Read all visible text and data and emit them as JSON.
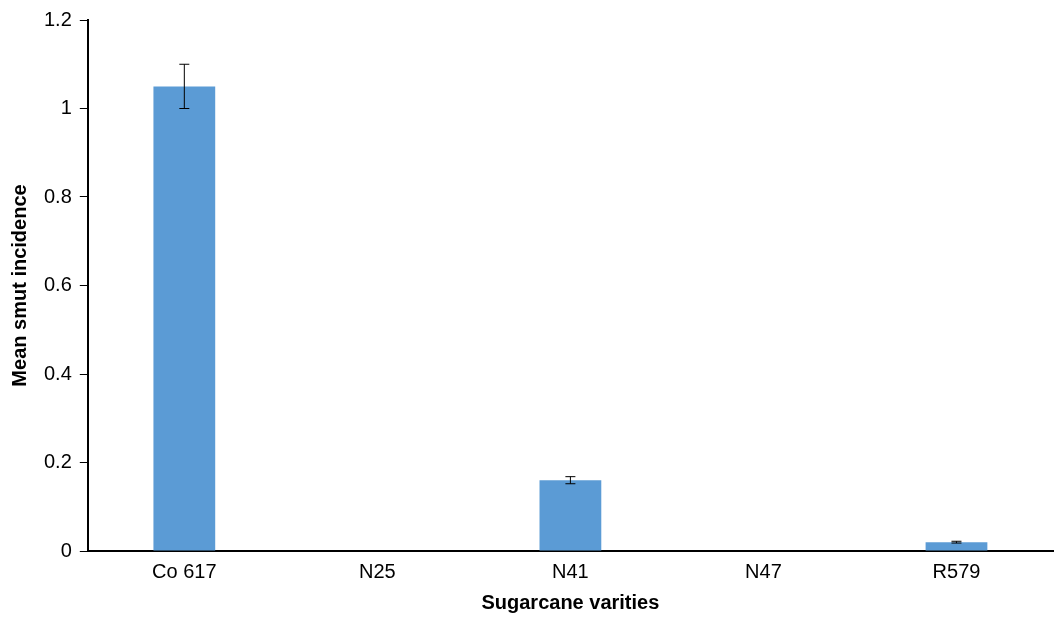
{
  "chart_data": {
    "type": "bar",
    "xlabel": "Sugarcane varities",
    "ylabel": "Mean smut incidence",
    "categories": [
      "Co 617",
      "N25",
      "N41",
      "N47",
      "R579"
    ],
    "values": [
      1.05,
      0,
      0.16,
      0,
      0.02
    ],
    "errors": [
      0.05,
      null,
      0.008,
      null,
      0.002
    ],
    "color": "#5b9bd5",
    "ylim": [
      0,
      1.2
    ],
    "yticks": [
      0,
      0.2,
      0.4,
      0.6,
      0.8,
      1,
      1.2
    ],
    "grid": false,
    "legend": false
  }
}
